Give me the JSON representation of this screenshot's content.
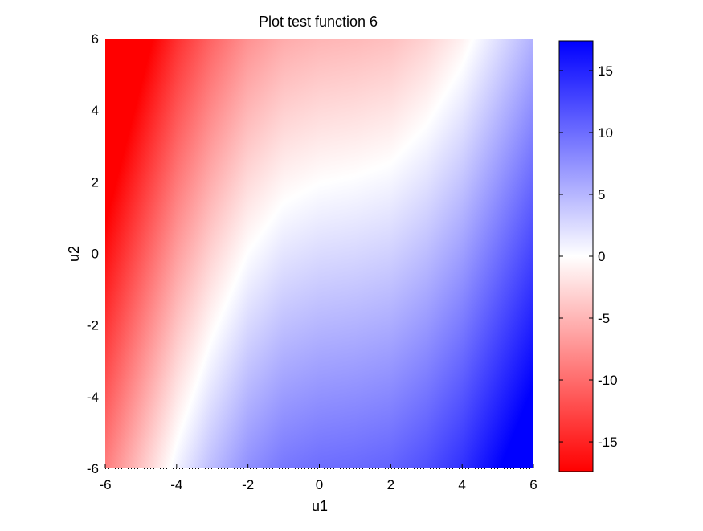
{
  "chart_data": {
    "type": "heatmap",
    "title": "Plot test function 6",
    "xlabel": "u1",
    "ylabel": "u2",
    "xlim": [
      -6,
      6
    ],
    "ylim": [
      -6,
      6
    ],
    "x_ticks": [
      -6,
      -4,
      -2,
      0,
      2,
      4,
      6
    ],
    "y_ticks": [
      -6,
      -4,
      -2,
      0,
      2,
      4,
      6
    ],
    "colorbar": {
      "range": [
        -17.4,
        17.4
      ],
      "ticks": [
        -15,
        -10,
        -5,
        0,
        5,
        10,
        15
      ],
      "colors": {
        "low": "#ff0000",
        "mid": "#ffffff",
        "high": "#0000ff"
      }
    },
    "grid": false,
    "zero_contour": [
      {
        "u1": -4.5,
        "u2": -6.0
      },
      {
        "u1": -4.0,
        "u2": -4.2
      },
      {
        "u1": -3.0,
        "u2": -1.5
      },
      {
        "u1": -2.0,
        "u2": 0.6
      },
      {
        "u1": -1.0,
        "u2": 1.7
      },
      {
        "u1": 0.0,
        "u2": 1.95
      },
      {
        "u1": 1.0,
        "u2": 2.0
      },
      {
        "u1": 2.0,
        "u2": 2.2
      },
      {
        "u1": 3.0,
        "u2": 3.1
      },
      {
        "u1": 4.0,
        "u2": 4.6
      },
      {
        "u1": 4.6,
        "u2": 6.0
      }
    ]
  }
}
